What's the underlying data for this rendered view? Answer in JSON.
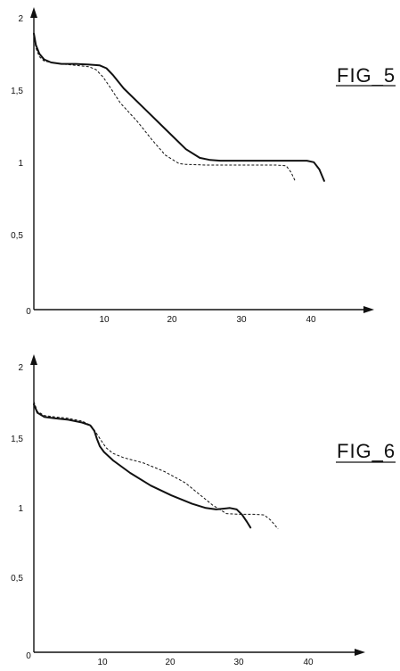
{
  "chart_data": [
    {
      "type": "line",
      "title": "FIG_5",
      "xlabel": "",
      "ylabel": "",
      "xlim": [
        0,
        46
      ],
      "ylim": [
        0,
        2.05
      ],
      "x_ticks": [
        "10",
        "20",
        "30",
        "40"
      ],
      "y_ticks": [
        "0,5",
        "1",
        "1,5",
        "2"
      ],
      "origin_label": "0",
      "grid": false,
      "series": [
        {
          "style": "solid",
          "x": [
            0,
            0.3,
            0.8,
            1.5,
            2.5,
            4,
            6,
            8,
            9.5,
            10.5,
            11.5,
            13,
            16,
            19,
            22,
            24,
            25.5,
            27,
            30,
            35,
            38,
            39.5,
            40.5,
            41.3,
            42
          ],
          "y": [
            1.91,
            1.83,
            1.77,
            1.73,
            1.71,
            1.7,
            1.7,
            1.695,
            1.69,
            1.67,
            1.62,
            1.53,
            1.39,
            1.25,
            1.11,
            1.05,
            1.035,
            1.03,
            1.03,
            1.03,
            1.03,
            1.03,
            1.02,
            0.97,
            0.89
          ]
        },
        {
          "style": "dashed",
          "x": [
            0,
            0.3,
            0.8,
            1.5,
            2.5,
            4,
            6,
            8,
            9,
            10,
            11,
            12.5,
            15,
            17,
            19,
            21,
            22,
            25,
            30,
            35,
            36.5,
            37.2,
            37.8
          ],
          "y": [
            1.9,
            1.81,
            1.75,
            1.72,
            1.71,
            1.7,
            1.69,
            1.68,
            1.66,
            1.61,
            1.54,
            1.43,
            1.3,
            1.18,
            1.07,
            1.01,
            1.005,
            1.0,
            1.0,
            1.0,
            0.995,
            0.95,
            0.89
          ]
        }
      ]
    },
    {
      "type": "line",
      "title": "FIG_6",
      "xlabel": "",
      "ylabel": "",
      "xlim": [
        0,
        46
      ],
      "ylim": [
        0,
        2.05
      ],
      "x_ticks": [
        "10",
        "20",
        "30",
        "40"
      ],
      "y_ticks": [
        "0,5",
        "1",
        "1,5",
        "2"
      ],
      "origin_label": "0",
      "grid": false,
      "series": [
        {
          "style": "solid",
          "x": [
            0,
            0.5,
            1.5,
            3,
            5,
            7,
            8.2,
            8.8,
            9.2,
            9.6,
            10.2,
            11.5,
            14,
            17,
            20,
            23,
            25,
            26.5,
            27.5,
            28.5,
            29.5,
            30.3,
            31,
            31.5
          ],
          "y": [
            1.77,
            1.71,
            1.68,
            1.67,
            1.66,
            1.64,
            1.62,
            1.58,
            1.52,
            1.47,
            1.43,
            1.37,
            1.28,
            1.19,
            1.12,
            1.06,
            1.03,
            1.02,
            1.025,
            1.03,
            1.02,
            0.98,
            0.93,
            0.89
          ]
        },
        {
          "style": "dashed",
          "x": [
            0,
            0.5,
            1.5,
            3,
            5,
            7,
            8.3,
            9,
            9.8,
            10.5,
            11.5,
            13,
            16,
            19,
            22,
            24,
            26,
            28,
            30,
            32,
            33.5,
            34.5,
            35.5
          ],
          "y": [
            1.79,
            1.72,
            1.69,
            1.68,
            1.67,
            1.65,
            1.62,
            1.57,
            1.51,
            1.46,
            1.42,
            1.39,
            1.35,
            1.29,
            1.21,
            1.13,
            1.05,
            0.99,
            0.985,
            0.985,
            0.98,
            0.94,
            0.88
          ]
        }
      ]
    }
  ]
}
